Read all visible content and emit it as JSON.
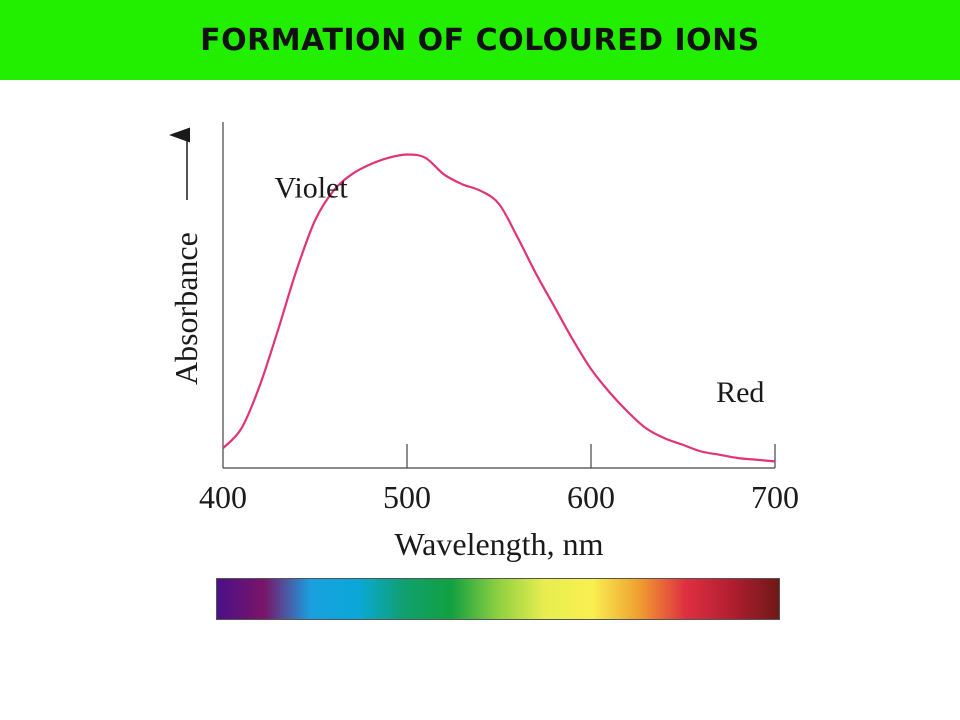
{
  "header": {
    "title": "FORMATION OF COLOURED IONS",
    "background_color": "#22ee00"
  },
  "chart_data": {
    "type": "line",
    "title": "",
    "xlabel": "Wavelength, nm",
    "ylabel": "Absorbance",
    "x_ticks": [
      400,
      500,
      600,
      700
    ],
    "xlim": [
      400,
      700
    ],
    "ylim": [
      0,
      1
    ],
    "grid": false,
    "legend": "none",
    "line_color": "#e0337a",
    "series": [
      {
        "x": [
          400,
          410,
          420,
          430,
          440,
          450,
          460,
          470,
          480,
          490,
          500,
          510,
          520,
          530,
          540,
          550,
          560,
          570,
          580,
          590,
          600,
          610,
          620,
          630,
          640,
          650,
          660,
          670,
          680,
          690,
          700
        ],
        "values": [
          0.06,
          0.12,
          0.25,
          0.42,
          0.6,
          0.75,
          0.84,
          0.89,
          0.92,
          0.94,
          0.95,
          0.94,
          0.89,
          0.86,
          0.84,
          0.8,
          0.7,
          0.59,
          0.49,
          0.39,
          0.3,
          0.23,
          0.17,
          0.12,
          0.09,
          0.07,
          0.05,
          0.04,
          0.03,
          0.025,
          0.02
        ]
      }
    ],
    "annotations": [
      {
        "text": "Violet",
        "x": 428,
        "y": 0.82
      },
      {
        "text": "Red",
        "x": 668,
        "y": 0.2
      }
    ]
  },
  "spectrum": {
    "colors": [
      "#4a1088",
      "#7a1468",
      "#1aa0e0",
      "#0aa8d8",
      "#10a070",
      "#12a040",
      "#8ed040",
      "#e8ee50",
      "#f8f050",
      "#f0a030",
      "#e03040",
      "#b01e30",
      "#701818"
    ]
  }
}
